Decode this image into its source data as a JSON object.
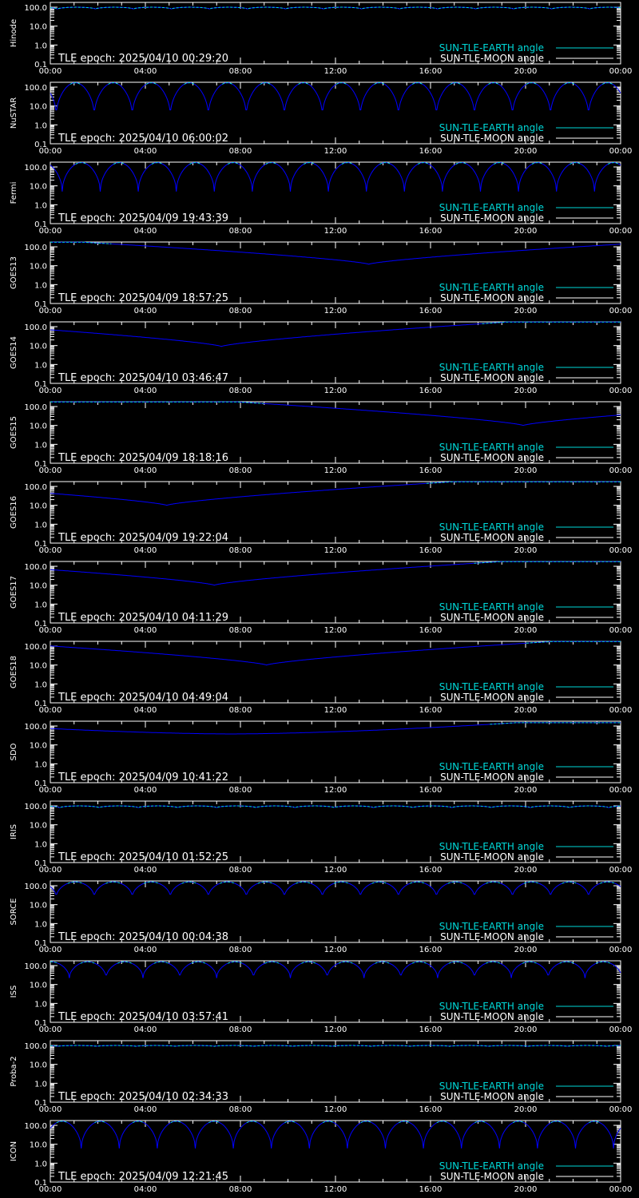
{
  "x_tick_labels": [
    "00:00",
    "04:00",
    "08:00",
    "12:00",
    "16:00",
    "20:00",
    "00:00"
  ],
  "y_tick_labels": [
    "100.0",
    "10.0",
    "1.0",
    "0.1"
  ],
  "y_tick_values": [
    100,
    10,
    1,
    0.1
  ],
  "legend": {
    "earth": {
      "label": "SUN-TLE-EARTH angle",
      "color": "#00d8d8"
    },
    "moon": {
      "label": "SUN-TLE-MOON angle",
      "color": "#ffffff"
    }
  },
  "colors": {
    "background": "#000000",
    "axes": "#ffffff",
    "dip_curve": "#0000ff",
    "earth": "#00d8d8",
    "moon": "#ffffff"
  },
  "chart_data": [
    {
      "type": "line",
      "satellite": "Hinode",
      "epoch_label": "TLE epoch: 2025/04/10 00:29:20",
      "xlim": [
        0,
        24
      ],
      "ylim": [
        0.1,
        180
      ],
      "yscale": "log",
      "pattern": "periodic",
      "period_h": 1.6,
      "phase_h": 0.3,
      "min_deg": 80,
      "max_deg": 100
    },
    {
      "type": "line",
      "satellite": "NuSTAR",
      "epoch_label": "TLE epoch: 2025/04/10 06:00:02",
      "xlim": [
        0,
        24
      ],
      "ylim": [
        0.1,
        180
      ],
      "yscale": "log",
      "pattern": "periodic",
      "period_h": 1.6,
      "phase_h": 0.25,
      "min_deg": 3,
      "max_deg": 170
    },
    {
      "type": "line",
      "satellite": "Fermi",
      "epoch_label": "TLE epoch: 2025/04/09 19:43:39",
      "xlim": [
        0,
        24
      ],
      "ylim": [
        0.1,
        180
      ],
      "yscale": "log",
      "pattern": "periodic",
      "period_h": 1.6,
      "phase_h": 0.5,
      "min_deg": 5,
      "max_deg": 170
    },
    {
      "type": "line",
      "satellite": "GOES13",
      "epoch_label": "TLE epoch: 2025/04/09 18:57:25",
      "xlim": [
        0,
        24
      ],
      "ylim": [
        0.1,
        180
      ],
      "yscale": "log",
      "pattern": "single",
      "dip_time_h": 13.4,
      "min_deg": 12,
      "max_deg": 175
    },
    {
      "type": "line",
      "satellite": "GOES14",
      "epoch_label": "TLE epoch: 2025/04/10 03:46:47",
      "xlim": [
        0,
        24
      ],
      "ylim": [
        0.1,
        180
      ],
      "yscale": "log",
      "pattern": "single",
      "dip_time_h": 7.2,
      "min_deg": 9,
      "max_deg": 175
    },
    {
      "type": "line",
      "satellite": "GOES15",
      "epoch_label": "TLE epoch: 2025/04/09 18:18:16",
      "xlim": [
        0,
        24
      ],
      "ylim": [
        0.1,
        180
      ],
      "yscale": "log",
      "pattern": "single",
      "dip_time_h": 19.9,
      "min_deg": 10,
      "max_deg": 175
    },
    {
      "type": "line",
      "satellite": "GOES16",
      "epoch_label": "TLE epoch: 2025/04/09 19:22:04",
      "xlim": [
        0,
        24
      ],
      "ylim": [
        0.1,
        180
      ],
      "yscale": "log",
      "pattern": "single",
      "dip_time_h": 4.9,
      "min_deg": 10,
      "max_deg": 175
    },
    {
      "type": "line",
      "satellite": "GOES17",
      "epoch_label": "TLE epoch: 2025/04/10 04:11:29",
      "xlim": [
        0,
        24
      ],
      "ylim": [
        0.1,
        180
      ],
      "yscale": "log",
      "pattern": "single",
      "dip_time_h": 6.9,
      "min_deg": 10,
      "max_deg": 175
    },
    {
      "type": "line",
      "satellite": "GOES18",
      "epoch_label": "TLE epoch: 2025/04/10 04:49:04",
      "xlim": [
        0,
        24
      ],
      "ylim": [
        0.1,
        180
      ],
      "yscale": "log",
      "pattern": "single",
      "dip_time_h": 9.1,
      "min_deg": 10,
      "max_deg": 175
    },
    {
      "type": "line",
      "satellite": "SDO",
      "epoch_label": "TLE epoch: 2025/04/09 10:41:22",
      "xlim": [
        0,
        24
      ],
      "ylim": [
        0.1,
        180
      ],
      "yscale": "log",
      "pattern": "single_smooth",
      "dip_time_h": 7.6,
      "min_deg": 38,
      "max_deg": 150
    },
    {
      "type": "line",
      "satellite": "IRIS",
      "epoch_label": "TLE epoch: 2025/04/10 01:52:25",
      "xlim": [
        0,
        24
      ],
      "ylim": [
        0.1,
        180
      ],
      "yscale": "log",
      "pattern": "periodic",
      "period_h": 1.65,
      "phase_h": 0.4,
      "min_deg": 80,
      "max_deg": 100
    },
    {
      "type": "line",
      "satellite": "SORCE",
      "epoch_label": "TLE epoch: 2025/04/10 00:04:38",
      "xlim": [
        0,
        24
      ],
      "ylim": [
        0.1,
        180
      ],
      "yscale": "log",
      "pattern": "periodic",
      "period_h": 1.6,
      "phase_h": 0.25,
      "min_deg": 25,
      "max_deg": 160
    },
    {
      "type": "line",
      "satellite": "ISS",
      "epoch_label": "TLE epoch: 2025/04/10 03:57:41",
      "xlim": [
        0,
        24
      ],
      "ylim": [
        0.1,
        180
      ],
      "yscale": "log",
      "pattern": "periodic",
      "period_h": 1.55,
      "phase_h": 0.8,
      "min_deg": 22,
      "max_deg": 160
    },
    {
      "type": "line",
      "satellite": "Proba-2",
      "epoch_label": "TLE epoch: 2025/04/10 02:34:33",
      "xlim": [
        0,
        24
      ],
      "ylim": [
        0.1,
        180
      ],
      "yscale": "log",
      "pattern": "periodic",
      "period_h": 1.65,
      "phase_h": 0.3,
      "min_deg": 90,
      "max_deg": 100
    },
    {
      "type": "line",
      "satellite": "ICON",
      "epoch_label": "TLE epoch: 2025/04/09 12:21:45",
      "xlim": [
        0,
        24
      ],
      "ylim": [
        0.1,
        180
      ],
      "yscale": "log",
      "pattern": "periodic",
      "period_h": 1.6,
      "phase_h": 1.3,
      "min_deg": 6,
      "max_deg": 165
    }
  ]
}
